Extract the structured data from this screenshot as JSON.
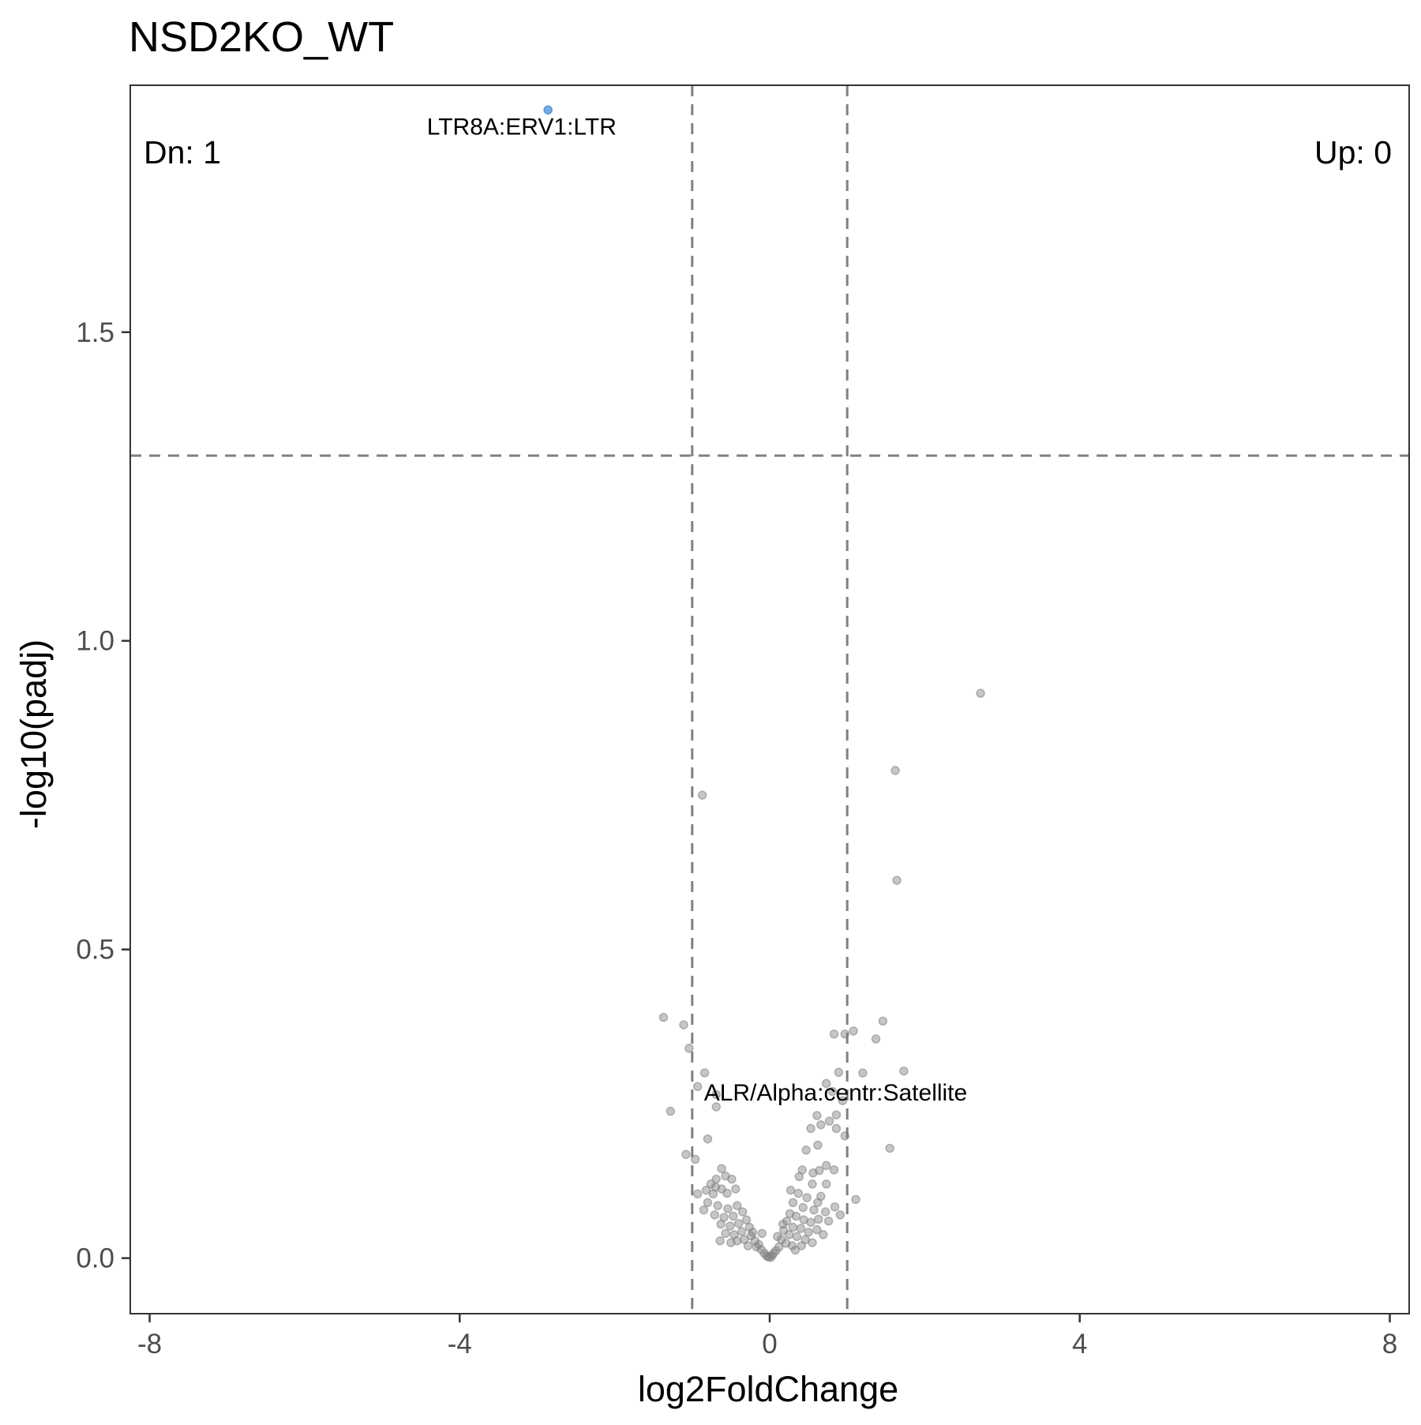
{
  "chart_data": {
    "type": "scatter",
    "title": "NSD2KO_WT",
    "xlabel": "log2FoldChange",
    "ylabel": "-log10(padj)",
    "xlim": [
      -8.25,
      8.25
    ],
    "ylim": [
      -0.09,
      1.9
    ],
    "xticks": [
      -8,
      -4,
      0,
      4,
      8
    ],
    "xtick_labels": [
      "-8",
      "-4",
      "0",
      "4",
      "8"
    ],
    "yticks": [
      0.0,
      0.5,
      1.0,
      1.5
    ],
    "ytick_labels": [
      "0.0",
      "0.5",
      "1.0",
      "1.5"
    ],
    "grid": false,
    "threshold_lines": {
      "x": [
        -1,
        1
      ],
      "y": 1.3
    },
    "corner_labels": {
      "down": "Dn: 1",
      "up": "Up: 0"
    },
    "colors": {
      "down": "#4a90d9",
      "ns": "#808080",
      "threshold": "#808080",
      "frame": "#333333"
    },
    "highlight_point": {
      "x": -2.86,
      "y": 1.86
    },
    "annotations": [
      {
        "text": "LTR8A:ERV1:LTR",
        "x": -3.2,
        "y": 1.82
      },
      {
        "text": "ALR/Alpha:centr:Satellite",
        "x": 0.85,
        "y": 0.255
      }
    ],
    "series": [
      {
        "group": "down",
        "points": [
          [
            -2.86,
            1.86
          ]
        ]
      },
      {
        "group": "ns",
        "points": [
          [
            2.72,
            0.915
          ],
          [
            1.62,
            0.79
          ],
          [
            -0.87,
            0.75
          ],
          [
            1.64,
            0.612
          ],
          [
            -1.37,
            0.39
          ],
          [
            -1.11,
            0.378
          ],
          [
            -1.04,
            0.34
          ],
          [
            1.46,
            0.384
          ],
          [
            1.37,
            0.355
          ],
          [
            0.83,
            0.363
          ],
          [
            0.97,
            0.363
          ],
          [
            1.08,
            0.368
          ],
          [
            1.73,
            0.303
          ],
          [
            1.2,
            0.3
          ],
          [
            -0.84,
            0.3
          ],
          [
            -0.93,
            0.278
          ],
          [
            -0.69,
            0.265
          ],
          [
            -0.69,
            0.245
          ],
          [
            -1.28,
            0.238
          ],
          [
            0.73,
            0.283
          ],
          [
            0.81,
            0.27
          ],
          [
            0.89,
            0.301
          ],
          [
            0.94,
            0.255
          ],
          [
            0.77,
            0.222
          ],
          [
            0.86,
            0.232
          ],
          [
            0.53,
            0.21
          ],
          [
            0.61,
            0.231
          ],
          [
            0.66,
            0.216
          ],
          [
            0.86,
            0.21
          ],
          [
            0.97,
            0.198
          ],
          [
            -0.8,
            0.193
          ],
          [
            1.55,
            0.178
          ],
          [
            -1.08,
            0.168
          ],
          [
            -0.96,
            0.16
          ],
          [
            0.62,
            0.183
          ],
          [
            0.47,
            0.175
          ],
          [
            0.73,
            0.15
          ],
          [
            0.83,
            0.143
          ],
          [
            0.64,
            0.142
          ],
          [
            0.42,
            0.143
          ],
          [
            0.56,
            0.138
          ],
          [
            0.38,
            0.132
          ],
          [
            0.55,
            0.12
          ],
          [
            0.73,
            0.12
          ],
          [
            -0.62,
            0.145
          ],
          [
            -0.57,
            0.133
          ],
          [
            -0.49,
            0.128
          ],
          [
            -0.69,
            0.128
          ],
          [
            -0.76,
            0.12
          ],
          [
            -0.82,
            0.11
          ],
          [
            -0.73,
            0.104
          ],
          [
            -0.93,
            0.104
          ],
          [
            -0.62,
            0.112
          ],
          [
            -0.55,
            0.105
          ],
          [
            -0.44,
            0.112
          ],
          [
            1.11,
            0.095
          ],
          [
            0.84,
            0.083
          ],
          [
            0.62,
            0.09
          ],
          [
            0.48,
            0.098
          ],
          [
            0.37,
            0.105
          ],
          [
            0.3,
            0.09
          ],
          [
            0.43,
            0.082
          ],
          [
            0.57,
            0.078
          ],
          [
            0.72,
            0.075
          ],
          [
            0.91,
            0.07
          ],
          [
            0.76,
            0.06
          ],
          [
            0.63,
            0.063
          ],
          [
            0.53,
            0.058
          ],
          [
            0.44,
            0.062
          ],
          [
            0.34,
            0.068
          ],
          [
            0.26,
            0.072
          ],
          [
            0.22,
            0.06
          ],
          [
            0.3,
            0.05
          ],
          [
            0.4,
            0.048
          ],
          [
            0.5,
            0.042
          ],
          [
            0.61,
            0.046
          ],
          [
            0.69,
            0.038
          ],
          [
            0.35,
            0.035
          ],
          [
            0.25,
            0.038
          ],
          [
            0.18,
            0.045
          ],
          [
            0.15,
            0.03
          ],
          [
            0.21,
            0.024
          ],
          [
            0.29,
            0.02
          ],
          [
            0.41,
            0.02
          ],
          [
            0.12,
            0.018
          ],
          [
            0.08,
            0.012
          ],
          [
            0.05,
            0.008
          ],
          [
            0.03,
            0.004
          ],
          [
            0.01,
            0.001
          ],
          [
            -0.8,
            0.09
          ],
          [
            -0.67,
            0.085
          ],
          [
            -0.54,
            0.08
          ],
          [
            -0.42,
            0.085
          ],
          [
            -0.35,
            0.075
          ],
          [
            -0.47,
            0.068
          ],
          [
            -0.59,
            0.066
          ],
          [
            -0.71,
            0.07
          ],
          [
            -0.85,
            0.078
          ],
          [
            -0.63,
            0.055
          ],
          [
            -0.51,
            0.052
          ],
          [
            -0.4,
            0.056
          ],
          [
            -0.3,
            0.062
          ],
          [
            -0.26,
            0.05
          ],
          [
            -0.36,
            0.043
          ],
          [
            -0.46,
            0.038
          ],
          [
            -0.57,
            0.04
          ],
          [
            -0.42,
            0.028
          ],
          [
            -0.33,
            0.03
          ],
          [
            -0.24,
            0.036
          ],
          [
            -0.19,
            0.028
          ],
          [
            -0.28,
            0.02
          ],
          [
            -0.17,
            0.018
          ],
          [
            -0.11,
            0.014
          ],
          [
            -0.07,
            0.008
          ],
          [
            -0.04,
            0.004
          ],
          [
            -0.02,
            0.002
          ],
          [
            -0.14,
            0.022
          ],
          [
            -0.22,
            0.042
          ],
          [
            -0.5,
            0.025
          ],
          [
            0.17,
            0.055
          ],
          [
            0.33,
            0.013
          ],
          [
            0.1,
            0.035
          ],
          [
            -0.1,
            0.04
          ],
          [
            0.46,
            0.03
          ],
          [
            -0.64,
            0.028
          ],
          [
            0.55,
            0.025
          ],
          [
            -0.7,
            0.115
          ],
          [
            0.66,
            0.1
          ],
          [
            0.27,
            0.11
          ]
        ]
      }
    ]
  }
}
